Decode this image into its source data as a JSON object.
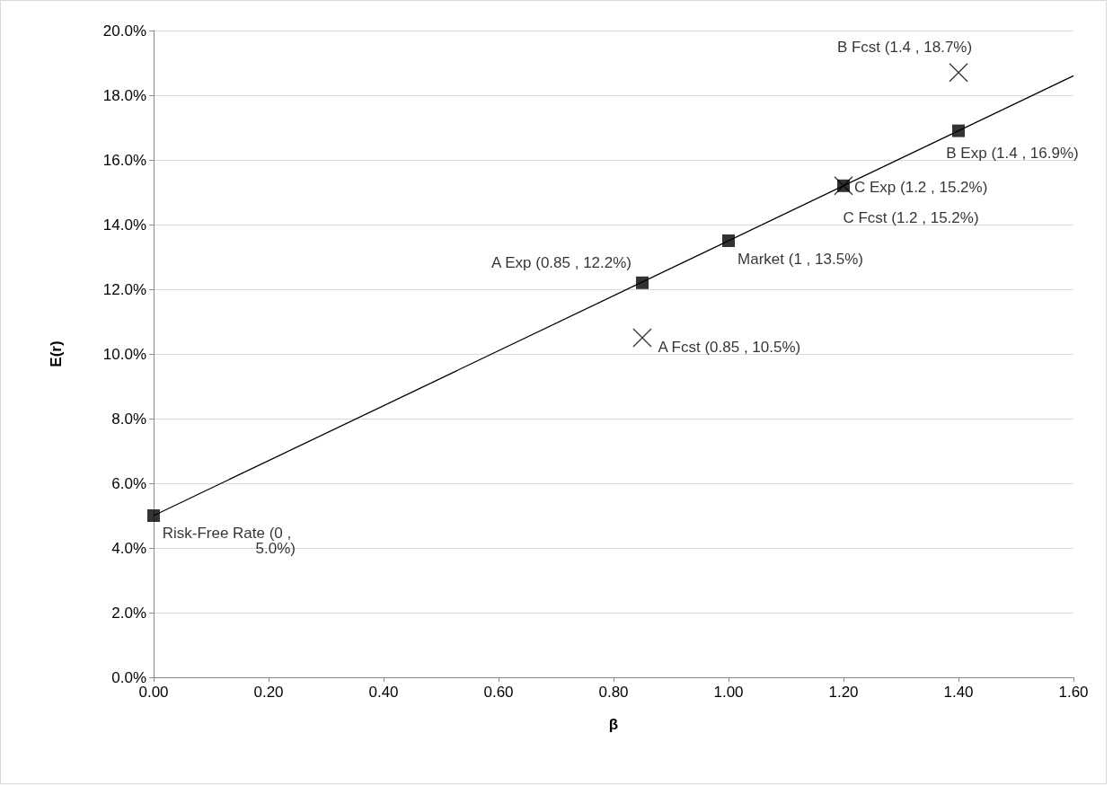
{
  "chart_data": {
    "type": "scatter",
    "xlabel": "β",
    "ylabel": "E(r)",
    "xlim": [
      0,
      1.6
    ],
    "ylim": [
      0,
      20
    ],
    "xticks": [
      {
        "value": 0,
        "label": "0.00"
      },
      {
        "value": 0.2,
        "label": "0.20"
      },
      {
        "value": 0.4,
        "label": "0.40"
      },
      {
        "value": 0.6,
        "label": "0.60"
      },
      {
        "value": 0.8,
        "label": "0.80"
      },
      {
        "value": 1,
        "label": "1.00"
      },
      {
        "value": 1.2,
        "label": "1.20"
      },
      {
        "value": 1.4,
        "label": "1.40"
      },
      {
        "value": 1.6,
        "label": "1.60"
      }
    ],
    "yticks": [
      {
        "value": 0,
        "label": "0.0%"
      },
      {
        "value": 2,
        "label": "2.0%"
      },
      {
        "value": 4,
        "label": "4.0%"
      },
      {
        "value": 6,
        "label": "6.0%"
      },
      {
        "value": 8,
        "label": "8.0%"
      },
      {
        "value": 10,
        "label": "10.0%"
      },
      {
        "value": 12,
        "label": "12.0%"
      },
      {
        "value": 14,
        "label": "14.0%"
      },
      {
        "value": 16,
        "label": "16.0%"
      },
      {
        "value": 18,
        "label": "18.0%"
      },
      {
        "value": 20,
        "label": "20.0%"
      }
    ],
    "grid": "y",
    "series": [
      {
        "type": "line",
        "color": "#000000",
        "marker": "none",
        "line_style": "solid",
        "x": [
          0,
          1.6
        ],
        "values": [
          5.0,
          18.6
        ]
      },
      {
        "color": "#000000",
        "marker": "square",
        "x": [
          0,
          0.85,
          1,
          1.2,
          1.4
        ],
        "values": [
          5.0,
          12.2,
          13.5,
          15.2,
          16.9
        ],
        "value_labels": [
          "Risk-Free Rate (0 , 5.0%)",
          "A Exp (0.85 , 12.2%)",
          "Market (1 , 13.5%)",
          "C Exp (1.2 , 15.2%)",
          "B Exp (1.4 , 16.9%)"
        ]
      },
      {
        "color": "#000000",
        "marker": "cross",
        "x": [
          0.85,
          1.2,
          1.4
        ],
        "values": [
          10.5,
          15.2,
          18.7
        ],
        "value_labels": [
          "A Fcst (0.85 , 10.5%)",
          "C Fcst (1.2 , 15.2%)",
          "B Fcst (1.4 , 18.7%)"
        ]
      }
    ]
  }
}
